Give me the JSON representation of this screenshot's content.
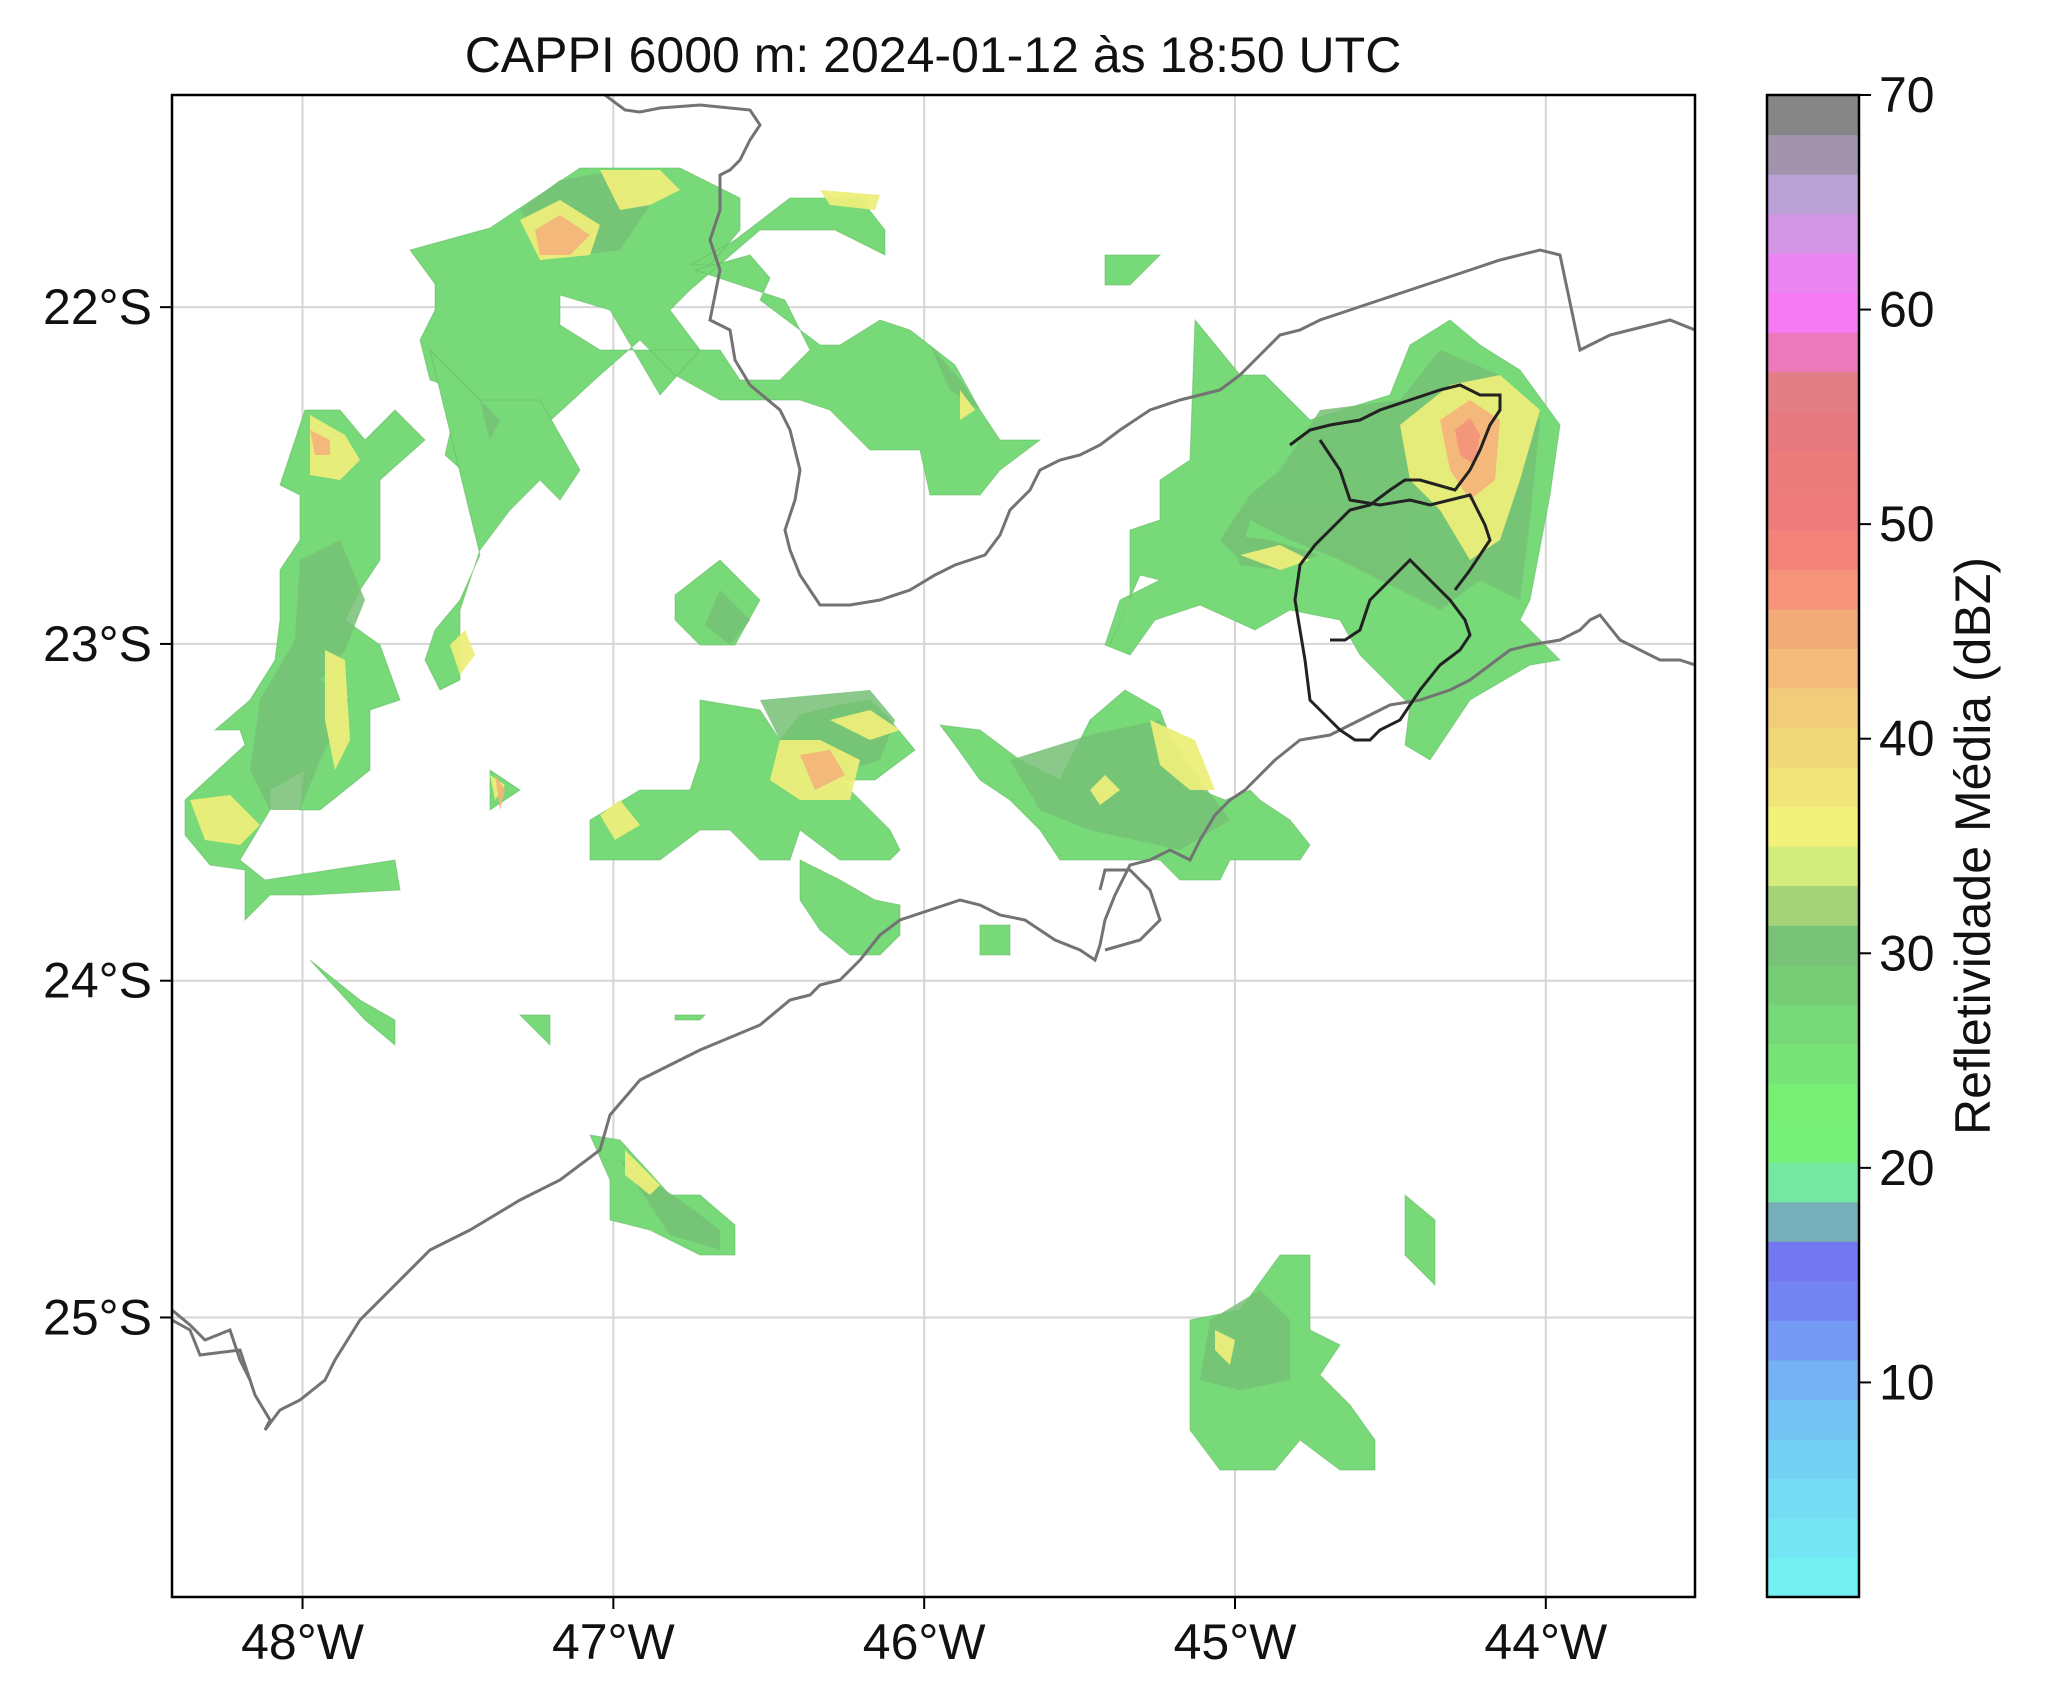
{
  "title": "CAPPI 6000 m: 2024-01-12 às 18:50 UTC",
  "map": {
    "lon_range": [
      -48.42,
      -43.52
    ],
    "lat_range": [
      -25.83,
      -21.37
    ],
    "x_ticks": [
      {
        "value": -48,
        "label": "48°W"
      },
      {
        "value": -47,
        "label": "47°W"
      },
      {
        "value": -46,
        "label": "46°W"
      },
      {
        "value": -45,
        "label": "45°W"
      },
      {
        "value": -44,
        "label": "44°W"
      }
    ],
    "y_ticks": [
      {
        "value": -22,
        "label": "22°S"
      },
      {
        "value": -23,
        "label": "23°S"
      },
      {
        "value": -24,
        "label": "24°S"
      },
      {
        "value": -25,
        "label": "25°S"
      }
    ],
    "gridlines": true
  },
  "colorbar": {
    "label": "Refletividade Média (dBZ)",
    "range": [
      0,
      70
    ],
    "ticks": [
      {
        "value": 10,
        "label": "10"
      },
      {
        "value": 20,
        "label": "20"
      },
      {
        "value": 30,
        "label": "30"
      },
      {
        "value": 40,
        "label": "40"
      },
      {
        "value": 50,
        "label": "50"
      },
      {
        "value": 60,
        "label": "60"
      },
      {
        "value": 70,
        "label": "70"
      }
    ],
    "colors": [
      "#74f0f3",
      "#74e6f3",
      "#74dcf3",
      "#74d1f3",
      "#74c4f3",
      "#74b2f3",
      "#749af3",
      "#7484f3",
      "#7478f0",
      "#76afba",
      "#74e8a0",
      "#76f078",
      "#78ee74",
      "#78e478",
      "#76d878",
      "#76cd76",
      "#79c379",
      "#a6d37a",
      "#d4ec7c",
      "#f2f27a",
      "#f0e47a",
      "#f0d87a",
      "#f2cc7a",
      "#f4bb7a",
      "#f3ab7a",
      "#f5947a",
      "#f4847a",
      "#ef7c7c",
      "#ec7c7c",
      "#e67a80",
      "#e27e86",
      "#ec7aba",
      "#f67af3",
      "#ea84f1",
      "#d296e4",
      "#baa2d6",
      "#a294ac",
      "#868686"
    ]
  }
}
